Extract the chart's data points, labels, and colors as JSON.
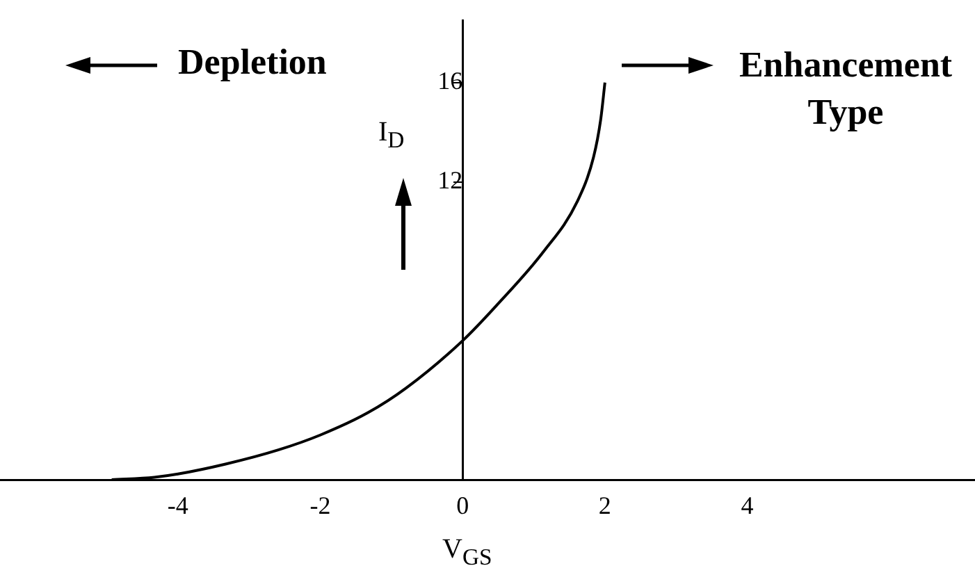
{
  "chart_data": {
    "type": "line",
    "title": null,
    "x": [
      -4.93,
      -4.33,
      -4.0,
      -3.33,
      -2.59,
      -2.0,
      -1.33,
      -0.79,
      0,
      0.47,
      1.14,
      1.61,
      1.84,
      1.94,
      2.0
    ],
    "values": [
      0,
      0.1,
      0.23,
      0.63,
      1.2,
      1.8,
      2.7,
      3.7,
      5.6,
      7.0,
      9.2,
      11.2,
      13.0,
      14.5,
      16.0
    ],
    "color": "#000000",
    "xlim": [
      -6.5,
      7.2
    ],
    "ylim": [
      0,
      18.5
    ],
    "xticks": [
      -4,
      -2,
      0,
      2,
      4
    ],
    "yticks": [
      12,
      16
    ],
    "xlabel": "V$_{GS}$",
    "ylabel": "I$_{D}$",
    "annotations": [
      "Depletion",
      "Enhancement Type"
    ],
    "grid": false,
    "legend": false,
    "marker": "none"
  }
}
